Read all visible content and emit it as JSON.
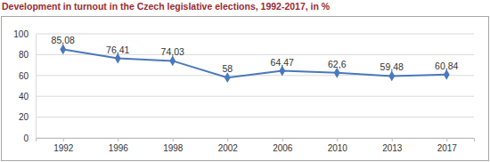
{
  "chart_data": {
    "type": "line",
    "title": "Development in turnout in the Czech legislative elections, 1992-2017, in %",
    "categories": [
      "1992",
      "1996",
      "1998",
      "2002",
      "2006",
      "2010",
      "2013",
      "2017"
    ],
    "values": [
      85.08,
      76.41,
      74.03,
      58,
      64.47,
      62.6,
      59.48,
      60.84
    ],
    "value_labels": [
      "85,08",
      "76,41",
      "74,03",
      "58",
      "64,47",
      "62,6",
      "59,48",
      "60,84"
    ],
    "color": "#4a78bd",
    "marker": "diamond",
    "data_labels": true,
    "ylim": [
      0,
      100
    ],
    "yticks": [
      0,
      20,
      40,
      60,
      80,
      100
    ],
    "grid": true
  }
}
